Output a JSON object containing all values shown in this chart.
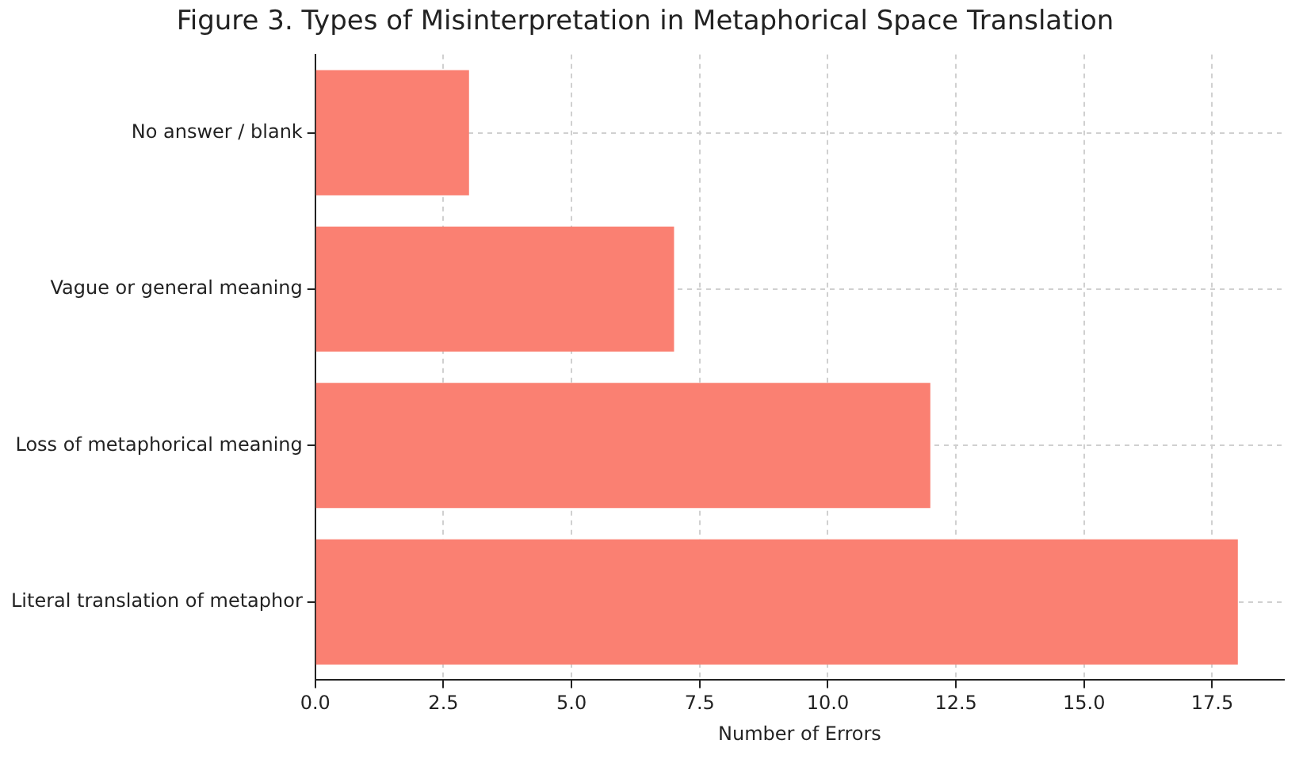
{
  "chart_data": {
    "type": "bar",
    "orientation": "horizontal",
    "title": "Figure 3. Types of Misinterpretation in Metaphorical Space Translation",
    "xlabel": "Number of Errors",
    "categories": [
      "No answer / blank",
      "Vague or general meaning",
      "Loss of metaphorical meaning",
      "Literal translation of metaphor"
    ],
    "values": [
      3,
      7,
      12,
      18
    ],
    "color": "#fa8072",
    "xlim": [
      0,
      18.9
    ],
    "xticks": [
      {
        "value": 0,
        "label": "0.0"
      },
      2.5,
      {
        "value": 5,
        "label": "5.0"
      },
      7.5,
      {
        "value": 10,
        "label": "10.0"
      },
      12.5,
      {
        "value": 15,
        "label": "15.0"
      },
      17.5
    ],
    "grid": true
  }
}
